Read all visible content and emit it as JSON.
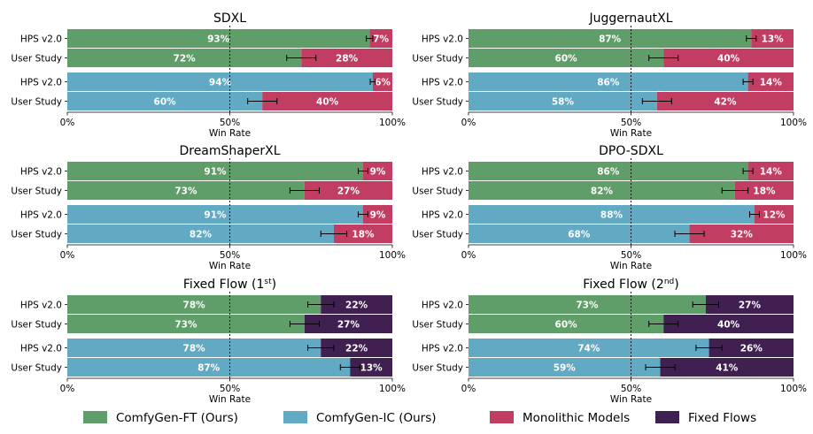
{
  "chart_data": {
    "type": "bar",
    "orientation": "horizontal-stacked",
    "xlabel": "Win Rate",
    "xlim": [
      0,
      100
    ],
    "xticks": [
      "0%",
      "50%",
      "100%"
    ],
    "reference_line": 50,
    "colors": {
      "ComfyGen-FT (Ours)": "#5f9e68",
      "ComfyGen-IC (Ours)": "#62a9c4",
      "Monolithic Models": "#c23d62",
      "Fixed Flows": "#3f2051"
    },
    "legend": [
      {
        "label": "ComfyGen-FT (Ours)",
        "color": "#5f9e68"
      },
      {
        "label": "ComfyGen-IC (Ours)",
        "color": "#62a9c4"
      },
      {
        "label": "Monolithic Models",
        "color": "#c23d62"
      },
      {
        "label": "Fixed Flows",
        "color": "#3f2051"
      }
    ],
    "panels": [
      {
        "title": "SDXL",
        "opponent": "Monolithic Models",
        "groups": [
          {
            "method": "ComfyGen-FT (Ours)",
            "rows": [
              {
                "label": "HPS v2.0",
                "win": 93,
                "loss": 7,
                "err": 1.0
              },
              {
                "label": "User Study",
                "win": 72,
                "loss": 28,
                "err": 4.5
              }
            ]
          },
          {
            "method": "ComfyGen-IC (Ours)",
            "rows": [
              {
                "label": "HPS v2.0",
                "win": 94,
                "loss": 6,
                "err": 0.8
              },
              {
                "label": "User Study",
                "win": 60,
                "loss": 40,
                "err": 4.5
              }
            ]
          }
        ]
      },
      {
        "title": "JuggernautXL",
        "opponent": "Monolithic Models",
        "groups": [
          {
            "method": "ComfyGen-FT (Ours)",
            "rows": [
              {
                "label": "HPS v2.0",
                "win": 87,
                "loss": 13,
                "err": 1.5
              },
              {
                "label": "User Study",
                "win": 60,
                "loss": 40,
                "err": 4.5
              }
            ]
          },
          {
            "method": "ComfyGen-IC (Ours)",
            "rows": [
              {
                "label": "HPS v2.0",
                "win": 86,
                "loss": 14,
                "err": 1.5
              },
              {
                "label": "User Study",
                "win": 58,
                "loss": 42,
                "err": 4.5
              }
            ]
          }
        ]
      },
      {
        "title": "DreamShaperXL",
        "opponent": "Monolithic Models",
        "groups": [
          {
            "method": "ComfyGen-FT (Ours)",
            "rows": [
              {
                "label": "HPS v2.0",
                "win": 91,
                "loss": 9,
                "err": 1.5
              },
              {
                "label": "User Study",
                "win": 73,
                "loss": 27,
                "err": 4.5
              }
            ]
          },
          {
            "method": "ComfyGen-IC (Ours)",
            "rows": [
              {
                "label": "HPS v2.0",
                "win": 91,
                "loss": 9,
                "err": 1.5
              },
              {
                "label": "User Study",
                "win": 82,
                "loss": 18,
                "err": 4.0
              }
            ]
          }
        ]
      },
      {
        "title": "DPO-SDXL",
        "opponent": "Monolithic Models",
        "groups": [
          {
            "method": "ComfyGen-FT (Ours)",
            "rows": [
              {
                "label": "HPS v2.0",
                "win": 86,
                "loss": 14,
                "err": 1.5
              },
              {
                "label": "User Study",
                "win": 82,
                "loss": 18,
                "err": 4.0
              }
            ]
          },
          {
            "method": "ComfyGen-IC (Ours)",
            "rows": [
              {
                "label": "HPS v2.0",
                "win": 88,
                "loss": 12,
                "err": 1.5
              },
              {
                "label": "User Study",
                "win": 68,
                "loss": 32,
                "err": 4.5
              }
            ]
          }
        ]
      },
      {
        "title": "Fixed Flow (1",
        "title_sup": "st",
        "title_end": ")",
        "opponent": "Fixed Flows",
        "groups": [
          {
            "method": "ComfyGen-FT (Ours)",
            "rows": [
              {
                "label": "HPS v2.0",
                "win": 78,
                "loss": 22,
                "err": 4.0
              },
              {
                "label": "User Study",
                "win": 73,
                "loss": 27,
                "err": 4.5
              }
            ]
          },
          {
            "method": "ComfyGen-IC (Ours)",
            "rows": [
              {
                "label": "HPS v2.0",
                "win": 78,
                "loss": 22,
                "err": 4.0
              },
              {
                "label": "User Study",
                "win": 87,
                "loss": 13,
                "err": 3.0
              }
            ]
          }
        ]
      },
      {
        "title": "Fixed Flow (2",
        "title_sup": "nd",
        "title_end": ")",
        "opponent": "Fixed Flows",
        "groups": [
          {
            "method": "ComfyGen-FT (Ours)",
            "rows": [
              {
                "label": "HPS v2.0",
                "win": 73,
                "loss": 27,
                "err": 4.0
              },
              {
                "label": "User Study",
                "win": 60,
                "loss": 40,
                "err": 4.5
              }
            ]
          },
          {
            "method": "ComfyGen-IC (Ours)",
            "rows": [
              {
                "label": "HPS v2.0",
                "win": 74,
                "loss": 26,
                "err": 4.0
              },
              {
                "label": "User Study",
                "win": 59,
                "loss": 41,
                "err": 4.5
              }
            ]
          }
        ]
      }
    ]
  }
}
